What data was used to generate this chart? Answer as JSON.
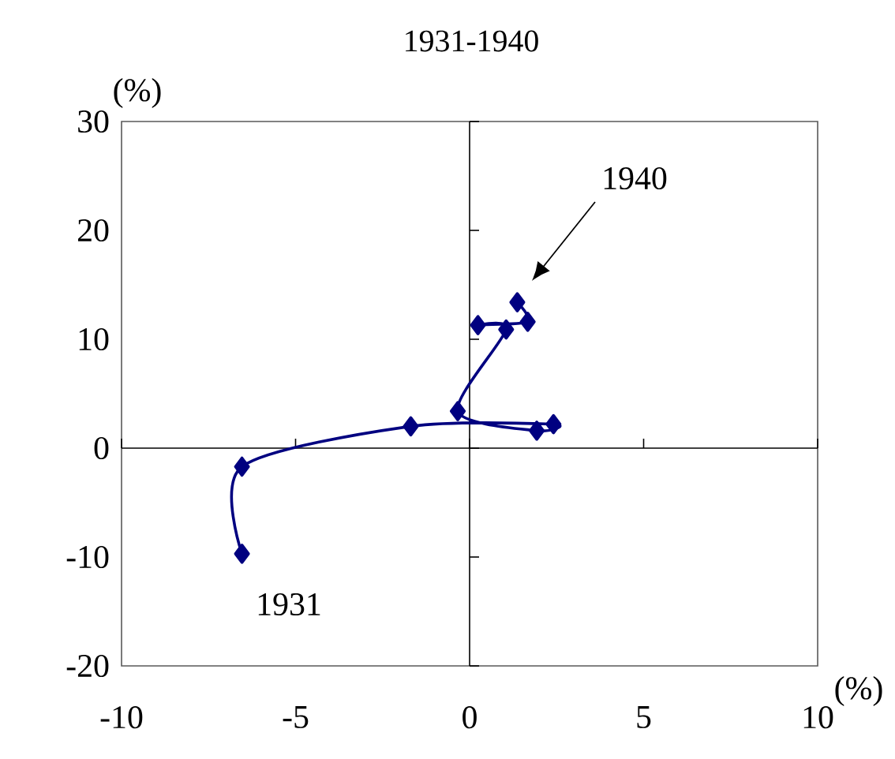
{
  "chart_data": {
    "type": "line",
    "title": "1931-1940",
    "xlabel": "(%)",
    "ylabel": "(%)",
    "xlim": [
      -10,
      10
    ],
    "ylim": [
      -20,
      30
    ],
    "xticks": [
      -10,
      -5,
      0,
      5,
      10
    ],
    "yticks": [
      -20,
      -10,
      0,
      10,
      20,
      30
    ],
    "marker": "diamond",
    "line_style": "solid",
    "series": [
      {
        "color": "#000080",
        "x": [
          -6.54,
          -6.54,
          -1.69,
          2.41,
          1.93,
          -0.34,
          1.05,
          0.24,
          1.67,
          1.37
        ],
        "values": [
          -9.7,
          -1.7,
          2.0,
          2.2,
          1.6,
          3.4,
          10.9,
          11.3,
          11.6,
          13.4
        ]
      }
    ],
    "annotations": [
      "1940",
      "1931"
    ]
  }
}
